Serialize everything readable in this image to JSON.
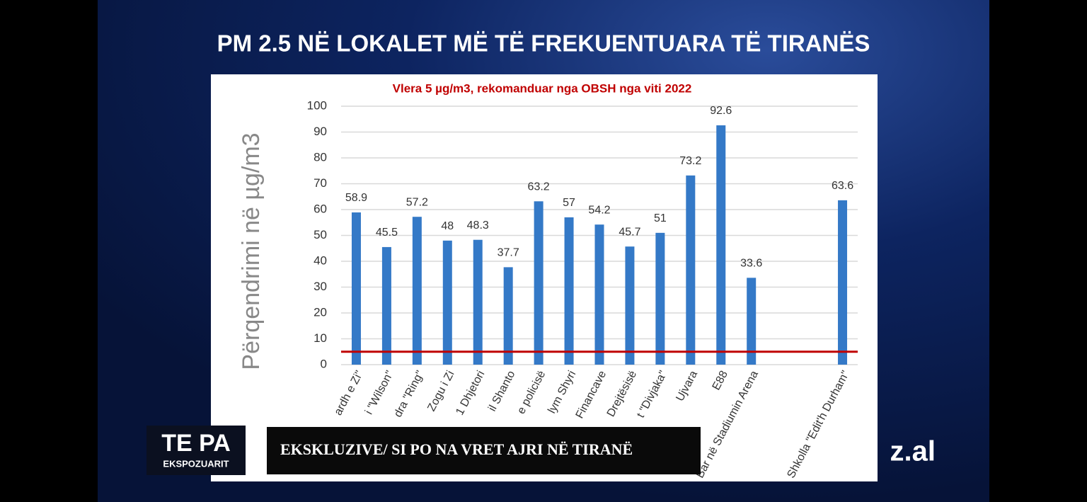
{
  "chart_data": {
    "type": "bar",
    "title": "PM 2.5  NË LOKALET MË TË FREKUENTUARA TË TIRANËS",
    "annotation": "Vlera 5 µg/m3, rekomanduar nga OBSH nga viti 2022",
    "y_label": "Përqendrimi në µg/m3",
    "categories": [
      "ardh e Zi\"",
      "i \"Wilson\"",
      "dra \"Ring\"",
      "Zogu i Zi",
      "1 Dhjetori",
      "il Shanto",
      "e policisë",
      "lym Shyri",
      "Financave",
      "Drejtësisë",
      "t \"Divjaka\"",
      "Ujvara",
      "E88",
      "Bar në Stadiumin Arena",
      null,
      null,
      "Shkolla \"Edit'h Durham\""
    ],
    "values": [
      58.9,
      45.5,
      57.2,
      48,
      48.3,
      37.7,
      63.2,
      57,
      54.2,
      45.7,
      51,
      73.2,
      92.6,
      33.6,
      null,
      null,
      63.6
    ],
    "color": "#3479c7",
    "ylim": [
      0,
      100
    ],
    "yticks": [
      0,
      10,
      20,
      30,
      40,
      50,
      60,
      70,
      80,
      90,
      100
    ],
    "grid": true,
    "reference_line": {
      "value": 5,
      "color": "#c00000"
    }
  },
  "overlay": {
    "logo_top": "TE PA",
    "logo_bottom": "EKSPOZUARIT",
    "banner": "EKSKLUZIVE/ SI PO NA VRET AJRI NË TIRANË",
    "site": "z.al"
  }
}
